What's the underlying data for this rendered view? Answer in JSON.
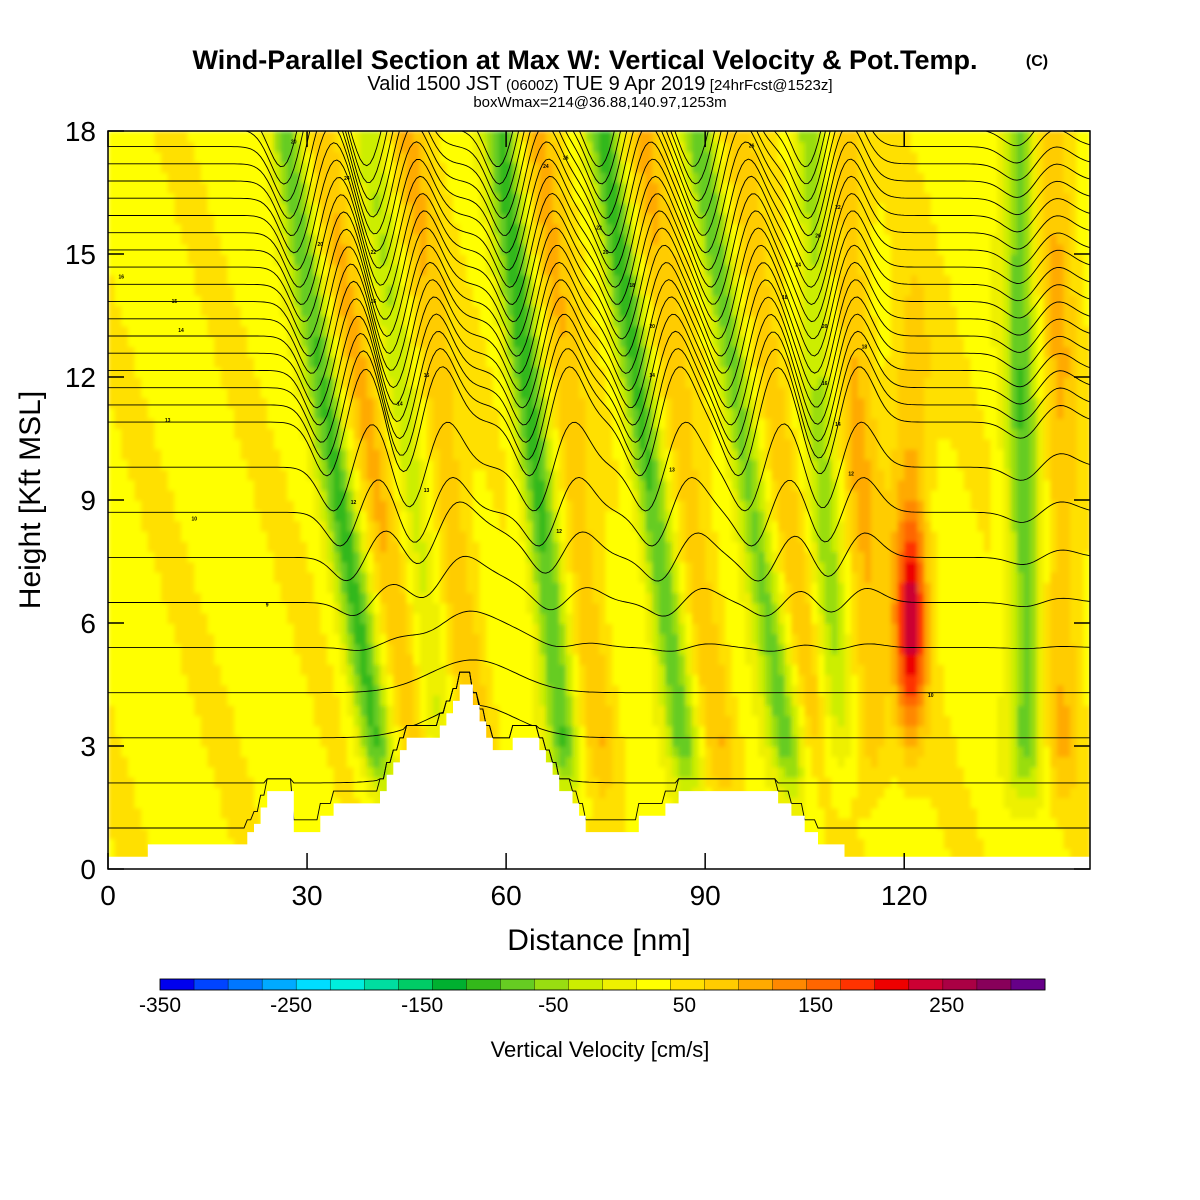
{
  "title": "Wind-Parallel Section at Max W: Vertical Velocity & Pot.Temp.",
  "title_mark": "(C)",
  "subtitle_parts": {
    "valid": "Valid 1500 JST",
    "utc": "(0600Z)",
    "date": "TUE 9 Apr 2019",
    "forecast": "[24hrFcst@1523z]"
  },
  "info_line": "boxWmax=214@36.88,140.97,1253m",
  "chart_data": {
    "type": "heatmap",
    "xlabel": "Distance [nm]",
    "ylabel": "Height [Kft MSL]",
    "xlim": [
      0,
      148
    ],
    "ylim": [
      0,
      18
    ],
    "x_ticks": [
      0,
      30,
      60,
      90,
      120
    ],
    "y_ticks": [
      0,
      3,
      6,
      9,
      12,
      15,
      18
    ],
    "colorbar": {
      "title": "Vertical Velocity [cm/s]",
      "min": -350,
      "max": 300,
      "step": 25,
      "tick_values": [
        -350,
        -250,
        -150,
        -50,
        50,
        150,
        250
      ],
      "tick_labels": [
        "-350",
        "-250",
        "-150",
        "-50",
        "50",
        "150",
        "250"
      ],
      "colors": [
        "#0000ee",
        "#0044ff",
        "#0077ff",
        "#00aaff",
        "#00ddff",
        "#00eedd",
        "#00dda0",
        "#00cc66",
        "#00b030",
        "#33b81a",
        "#66cc22",
        "#99dd11",
        "#ccee00",
        "#eef000",
        "#ffff00",
        "#ffe000",
        "#ffcc00",
        "#ffaa00",
        "#ff8800",
        "#ff6600",
        "#ff3300",
        "#ee0000",
        "#cc0033",
        "#aa0044",
        "#88005a",
        "#660088"
      ]
    },
    "terrain_kft": [
      [
        0,
        0.3
      ],
      [
        6,
        0.3
      ],
      [
        6,
        0.6
      ],
      [
        21,
        0.6
      ],
      [
        21,
        0.9
      ],
      [
        22,
        0.9
      ],
      [
        22,
        1.1
      ],
      [
        23,
        1.1
      ],
      [
        23,
        1.5
      ],
      [
        24,
        1.5
      ],
      [
        24,
        1.9
      ],
      [
        28,
        1.9
      ],
      [
        28,
        0.9
      ],
      [
        32,
        0.9
      ],
      [
        32,
        1.3
      ],
      [
        34,
        1.3
      ],
      [
        34,
        1.6
      ],
      [
        41,
        1.6
      ],
      [
        41,
        1.9
      ],
      [
        42,
        1.9
      ],
      [
        42,
        2.3
      ],
      [
        43,
        2.3
      ],
      [
        43,
        2.6
      ],
      [
        44,
        2.6
      ],
      [
        44,
        2.9
      ],
      [
        45,
        2.9
      ],
      [
        45,
        3.2
      ],
      [
        50,
        3.2
      ],
      [
        50,
        3.5
      ],
      [
        51,
        3.5
      ],
      [
        51,
        3.8
      ],
      [
        52,
        3.8
      ],
      [
        52,
        4.1
      ],
      [
        53,
        4.1
      ],
      [
        53,
        4.5
      ],
      [
        55,
        4.5
      ],
      [
        55,
        4.0
      ],
      [
        56,
        4.0
      ],
      [
        56,
        3.6
      ],
      [
        57,
        3.6
      ],
      [
        57,
        3.2
      ],
      [
        58,
        3.2
      ],
      [
        58,
        2.9
      ],
      [
        61,
        2.9
      ],
      [
        61,
        3.2
      ],
      [
        65,
        3.2
      ],
      [
        65,
        2.9
      ],
      [
        66,
        2.9
      ],
      [
        66,
        2.6
      ],
      [
        67,
        2.6
      ],
      [
        67,
        2.3
      ],
      [
        68,
        2.3
      ],
      [
        68,
        1.9
      ],
      [
        70,
        1.9
      ],
      [
        70,
        1.6
      ],
      [
        71,
        1.6
      ],
      [
        71,
        1.3
      ],
      [
        72,
        1.3
      ],
      [
        72,
        0.9
      ],
      [
        80,
        0.9
      ],
      [
        80,
        1.3
      ],
      [
        84,
        1.3
      ],
      [
        84,
        1.6
      ],
      [
        86,
        1.6
      ],
      [
        86,
        1.9
      ],
      [
        101,
        1.9
      ],
      [
        101,
        1.6
      ],
      [
        103,
        1.6
      ],
      [
        103,
        1.3
      ],
      [
        105,
        1.3
      ],
      [
        105,
        0.9
      ],
      [
        107,
        0.9
      ],
      [
        107,
        0.6
      ],
      [
        111,
        0.6
      ],
      [
        111,
        0.3
      ],
      [
        148,
        0.3
      ]
    ],
    "updraft_columns": [
      {
        "x": 35,
        "wmin": -120,
        "tilt": 1.0
      },
      {
        "x": 46,
        "wmin": -60,
        "tilt": 0.8
      },
      {
        "x": 65,
        "wmin": -130,
        "tilt": 0.7
      },
      {
        "x": 82,
        "wmin": -125,
        "tilt": 0.9
      },
      {
        "x": 97,
        "wmin": -110,
        "tilt": 1.0
      },
      {
        "x": 108,
        "wmin": -80,
        "tilt": 0.3
      },
      {
        "x": 138,
        "wmin": -110,
        "tilt": 0.1
      }
    ],
    "max_updraft": {
      "x": 121,
      "z": 6.0,
      "w": 214
    },
    "theta_labels": [
      {
        "x": 28,
        "z": 17.7,
        "text": "20"
      },
      {
        "x": 36,
        "z": 16.8,
        "text": "24"
      },
      {
        "x": 32,
        "z": 15.2,
        "text": "20"
      },
      {
        "x": 40,
        "z": 15.0,
        "text": "22"
      },
      {
        "x": 2,
        "z": 14.4,
        "text": "16"
      },
      {
        "x": 10,
        "z": 13.8,
        "text": "15"
      },
      {
        "x": 11,
        "z": 13.1,
        "text": "14"
      },
      {
        "x": 40,
        "z": 13.8,
        "text": "16"
      },
      {
        "x": 48,
        "z": 12.0,
        "text": "15"
      },
      {
        "x": 44,
        "z": 11.3,
        "text": "14"
      },
      {
        "x": 9,
        "z": 10.9,
        "text": "13"
      },
      {
        "x": 48,
        "z": 9.2,
        "text": "13"
      },
      {
        "x": 37,
        "z": 8.9,
        "text": "12"
      },
      {
        "x": 13,
        "z": 8.5,
        "text": "10"
      },
      {
        "x": 24,
        "z": 6.4,
        "text": "9"
      },
      {
        "x": 66,
        "z": 17.1,
        "text": "24"
      },
      {
        "x": 69,
        "z": 17.3,
        "text": "26"
      },
      {
        "x": 74,
        "z": 15.6,
        "text": "22"
      },
      {
        "x": 75,
        "z": 15.0,
        "text": "20"
      },
      {
        "x": 79,
        "z": 14.2,
        "text": "18"
      },
      {
        "x": 82,
        "z": 13.2,
        "text": "20"
      },
      {
        "x": 82,
        "z": 12.0,
        "text": "14"
      },
      {
        "x": 85,
        "z": 9.7,
        "text": "13"
      },
      {
        "x": 68,
        "z": 8.2,
        "text": "12"
      },
      {
        "x": 97,
        "z": 17.6,
        "text": "26"
      },
      {
        "x": 110,
        "z": 16.1,
        "text": "22"
      },
      {
        "x": 107,
        "z": 15.4,
        "text": "20"
      },
      {
        "x": 104,
        "z": 14.7,
        "text": "24"
      },
      {
        "x": 102,
        "z": 13.9,
        "text": "18"
      },
      {
        "x": 108,
        "z": 13.2,
        "text": "20"
      },
      {
        "x": 114,
        "z": 12.7,
        "text": "18"
      },
      {
        "x": 108,
        "z": 11.8,
        "text": "16"
      },
      {
        "x": 110,
        "z": 10.8,
        "text": "14"
      },
      {
        "x": 112,
        "z": 9.6,
        "text": "12"
      },
      {
        "x": 124,
        "z": 4.2,
        "text": "10"
      }
    ]
  }
}
